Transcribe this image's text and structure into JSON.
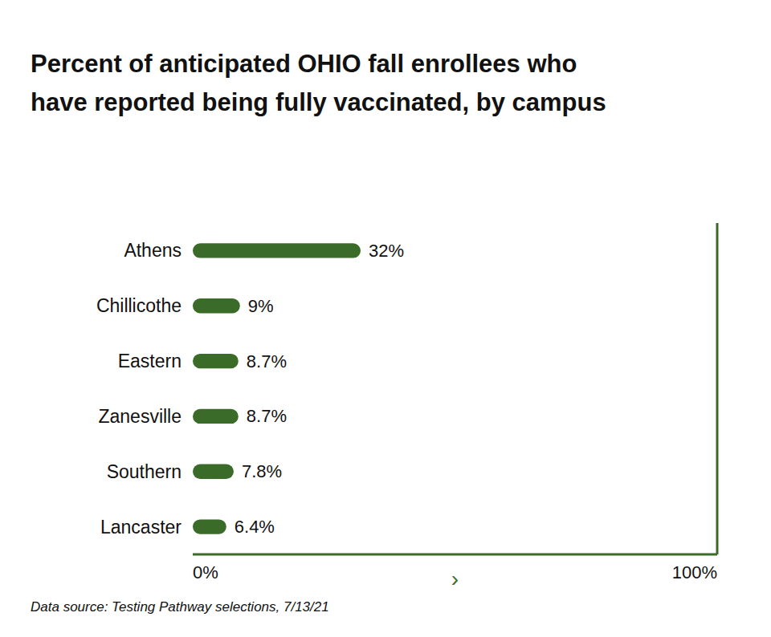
{
  "chart_data": {
    "type": "bar",
    "orientation": "horizontal",
    "title": "Percent of anticipated OHIO fall enrollees who",
    "subtitle": "have reported being fully vaccinated, by campus",
    "categories": [
      "Athens",
      "Chillicothe",
      "Eastern",
      "Zanesville",
      "Southern",
      "Lancaster"
    ],
    "values": [
      32,
      9,
      8.7,
      8.7,
      7.8,
      6.4
    ],
    "value_labels": [
      "32%",
      "9%",
      "8.7%",
      "8.7%",
      "7.8%",
      "6.4%"
    ],
    "data_labels": true,
    "color": "#3a6b28",
    "xlim": [
      0,
      100
    ],
    "xticks": [
      {
        "value": 0,
        "label": "0%"
      },
      {
        "value": 100,
        "label": "100%"
      }
    ],
    "grid": false,
    "annotations": [
      {
        "text": "›"
      }
    ],
    "source": "Data source: Testing Pathway selections, 7/13/21"
  }
}
